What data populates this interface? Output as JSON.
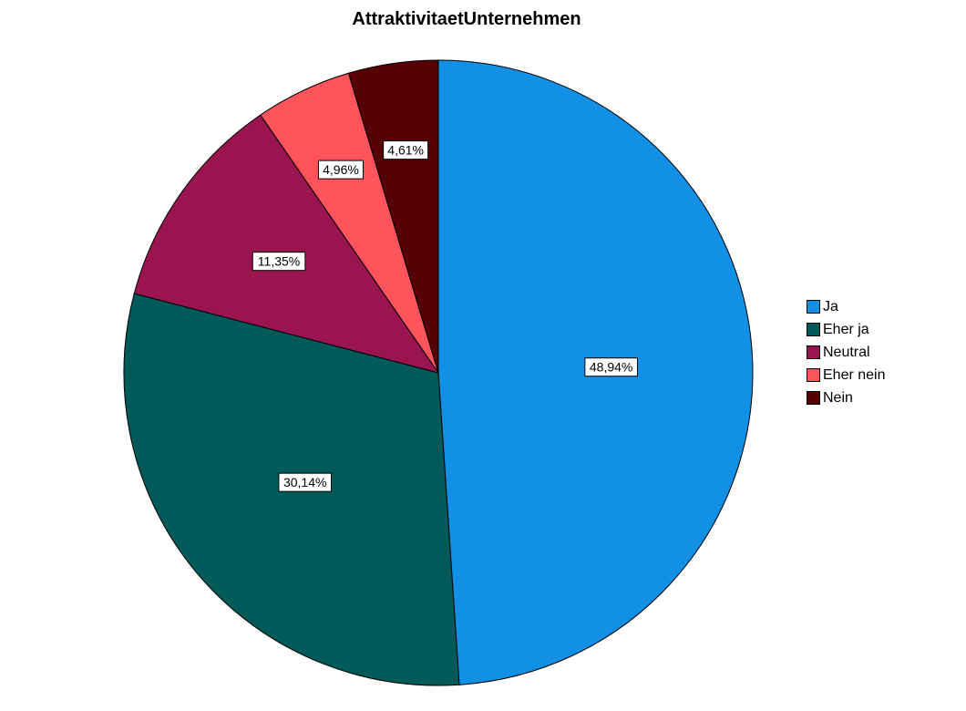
{
  "chart_data": {
    "type": "pie",
    "title": "AttraktivitaetUnternehmen",
    "slices": [
      {
        "label": "Ja",
        "value": 48.94,
        "display": "48,94%",
        "color": "#1290e6"
      },
      {
        "label": "Eher ja",
        "value": 30.14,
        "display": "30,14%",
        "color": "#005a5a"
      },
      {
        "label": "Neutral",
        "value": 11.35,
        "display": "11,35%",
        "color": "#9a1550"
      },
      {
        "label": "Eher nein",
        "value": 4.96,
        "display": "4,96%",
        "color": "#ff545b"
      },
      {
        "label": "Nein",
        "value": 4.61,
        "display": "4,61%",
        "color": "#560006"
      }
    ],
    "start_angle_deg": 0,
    "direction": "clockwise",
    "legend_position": "right"
  }
}
